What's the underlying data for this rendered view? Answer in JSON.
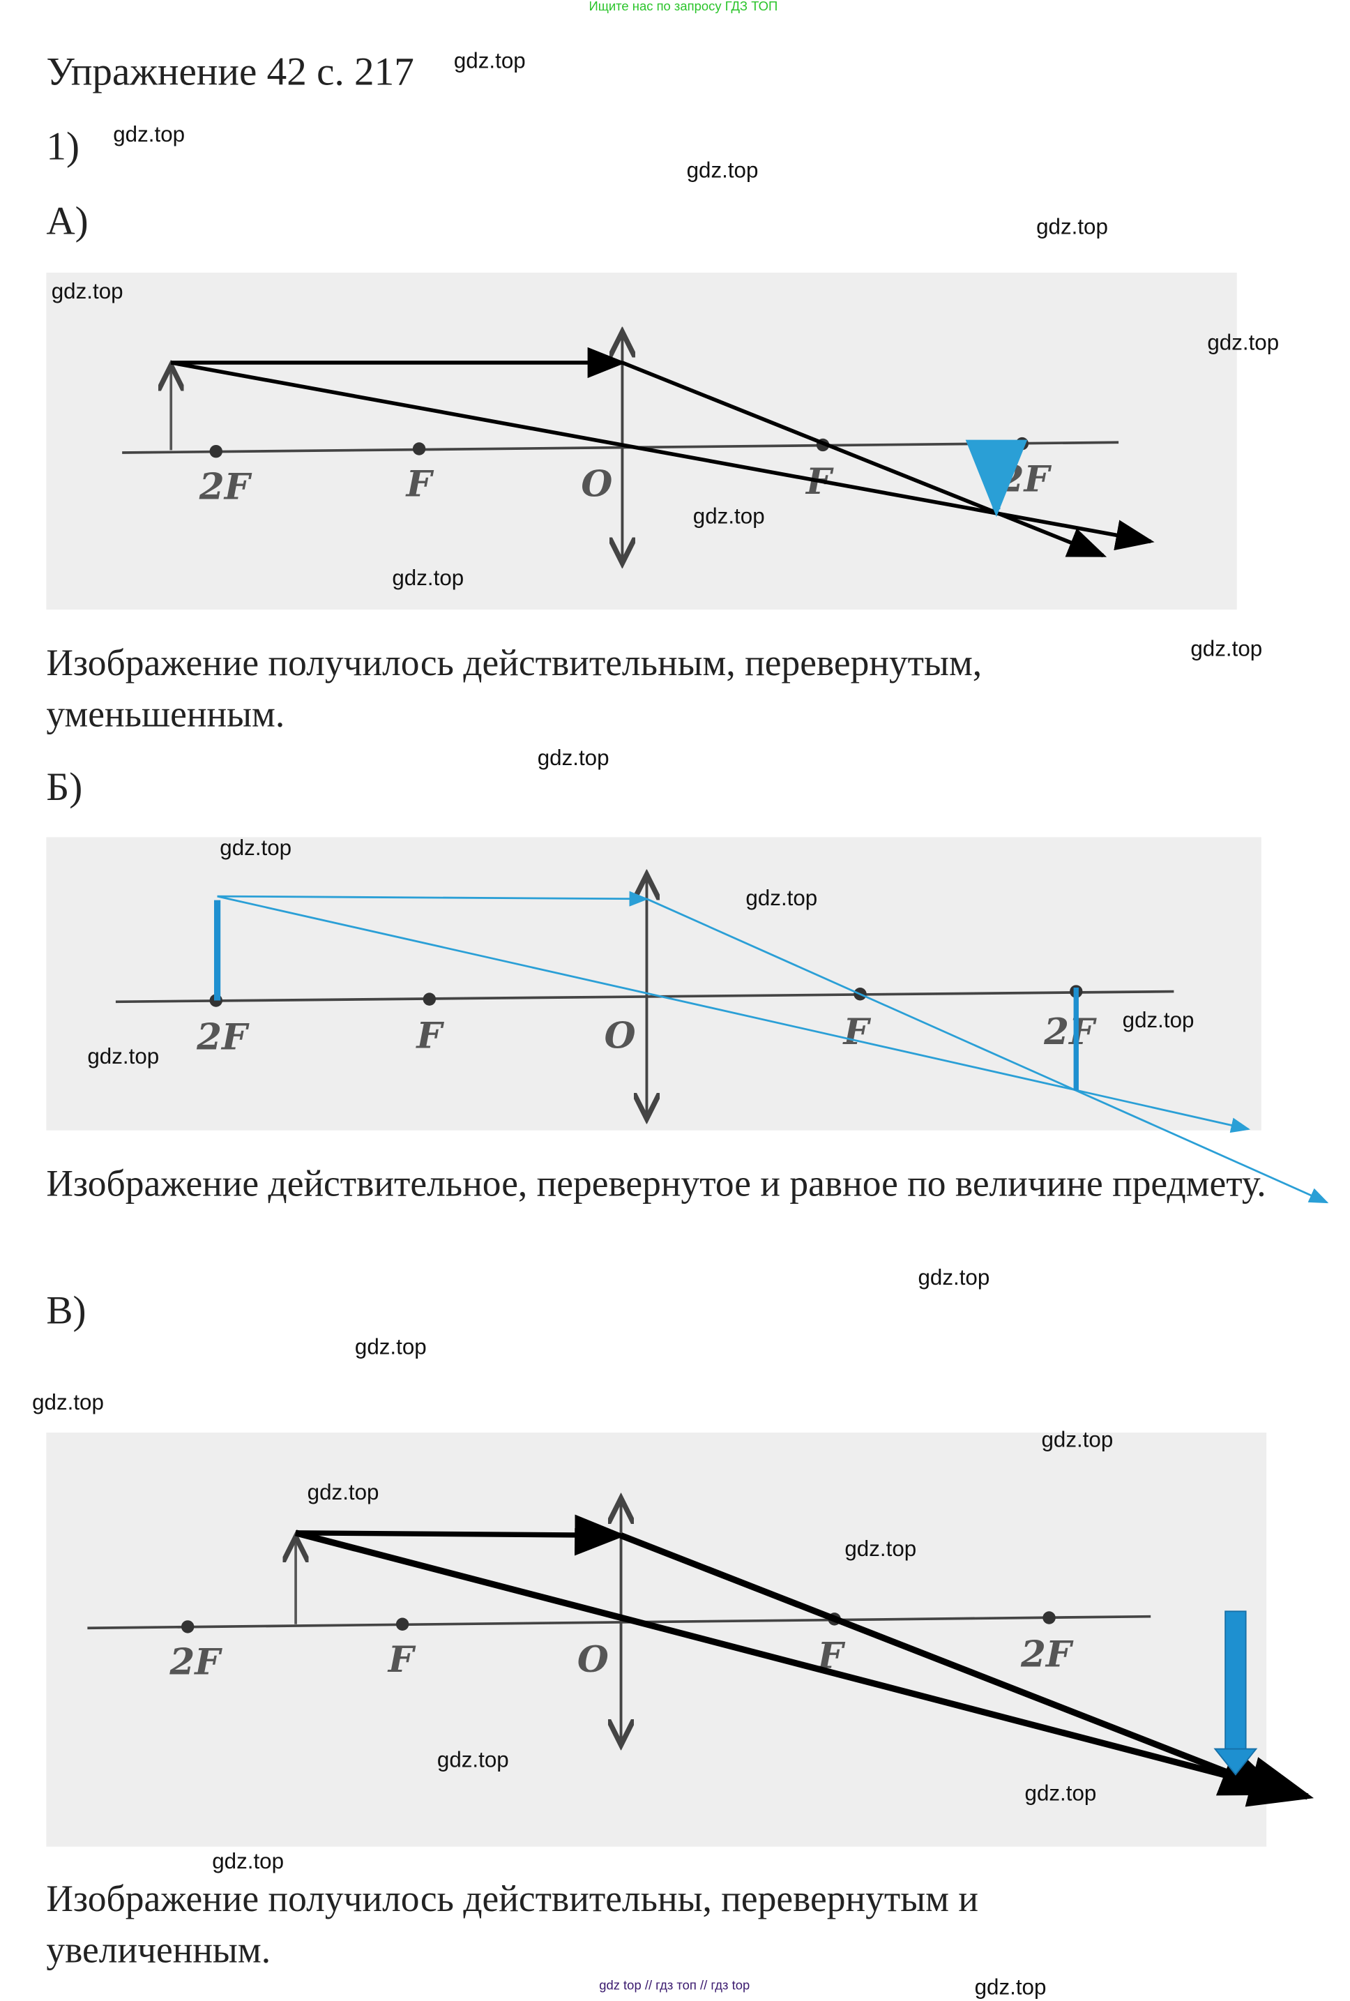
{
  "header_banner": "Ищите нас по запросу ГДЗ ТОП",
  "title": "Упражнение 42 с. 217",
  "part": "1)",
  "sections": [
    {
      "label": "А)",
      "conclusion": "Изображение получилось действительным, перевернутым, уменьшенным."
    },
    {
      "label": "Б)",
      "conclusion": "Изображение действительное, перевернутое и равное по величине предмету."
    },
    {
      "label": "В)",
      "conclusion": "Изображение получилось действительны, перевернутым и увеличенным."
    }
  ],
  "diagram_labels": {
    "two_f": "2F",
    "f": "F",
    "o": "O"
  },
  "watermark": "gdz.top",
  "footer": "gdz top  //  гдз топ  //  гдз top",
  "colors": {
    "ray_black": "#000000",
    "ray_blue": "#2a9fd6",
    "image_blue": "#1e90d0",
    "banner_green": "#2bc42b"
  }
}
